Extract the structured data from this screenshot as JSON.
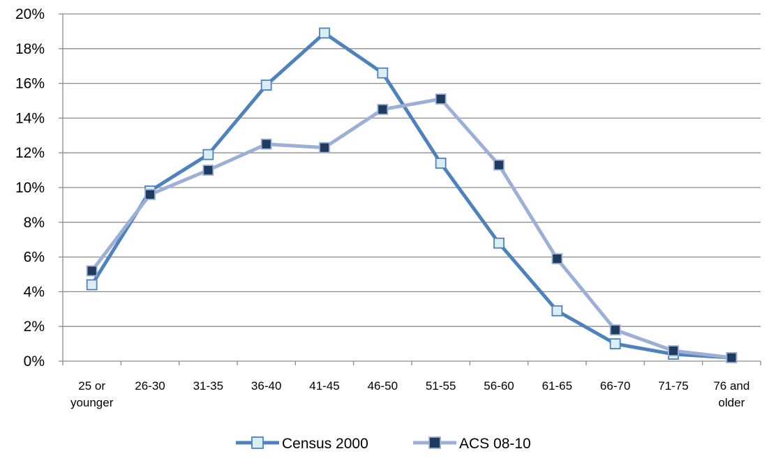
{
  "chart_data": {
    "type": "line",
    "title": "",
    "xlabel": "",
    "ylabel": "",
    "categories": [
      [
        "25 or",
        "younger"
      ],
      [
        "26-30"
      ],
      [
        "31-35"
      ],
      [
        "36-40"
      ],
      [
        "41-45"
      ],
      [
        "46-50"
      ],
      [
        "51-55"
      ],
      [
        "56-60"
      ],
      [
        "61-65"
      ],
      [
        "66-70"
      ],
      [
        "71-75"
      ],
      [
        "76 and",
        "older"
      ]
    ],
    "ylim": [
      0,
      20
    ],
    "yticks": [
      "0%",
      "2%",
      "4%",
      "6%",
      "8%",
      "10%",
      "12%",
      "14%",
      "16%",
      "18%",
      "20%"
    ],
    "grid": true,
    "legend_position": "bottom",
    "series": [
      {
        "name": "Census 2000",
        "values": [
          4.4,
          9.8,
          11.9,
          15.9,
          18.9,
          16.6,
          11.4,
          6.8,
          2.9,
          1.0,
          0.4,
          0.2
        ],
        "line_color": "#4f81bd",
        "marker_fill": "#dbeef4",
        "marker_stroke": "#4f81bd"
      },
      {
        "name": "ACS 08-10",
        "values": [
          5.2,
          9.6,
          11.0,
          12.5,
          12.3,
          14.5,
          15.1,
          11.3,
          5.9,
          1.8,
          0.6,
          0.2
        ],
        "line_color": "#9dafd6",
        "marker_fill": "#1f3b5e",
        "marker_stroke": "#9dafd6"
      }
    ]
  }
}
